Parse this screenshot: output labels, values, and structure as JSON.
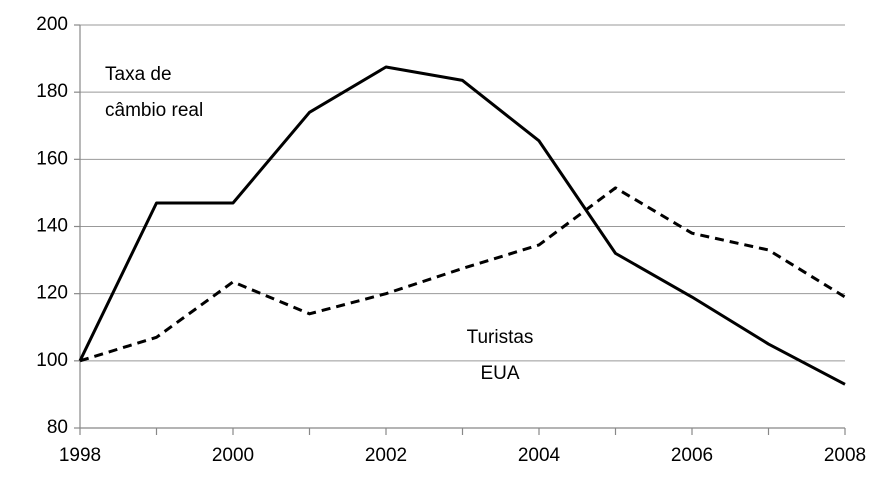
{
  "chart_data": {
    "type": "line",
    "x": [
      1998,
      1999,
      2000,
      2001,
      2002,
      2003,
      2004,
      2005,
      2006,
      2007,
      2008
    ],
    "series": [
      {
        "color": "#000000",
        "dash": false,
        "values": [
          100,
          147,
          147,
          174,
          187.5,
          183.5,
          165.5,
          132,
          119,
          105,
          93
        ]
      },
      {
        "color": "#000000",
        "dash": true,
        "values": [
          100,
          107,
          123.5,
          114,
          120,
          127.5,
          134.5,
          151.5,
          138,
          133,
          119
        ]
      }
    ],
    "annotations": [
      {
        "lines": [
          "Taxa de",
          "câmbio real"
        ]
      },
      {
        "lines": [
          "Turistas",
          "EUA"
        ]
      }
    ],
    "xlim": [
      1998,
      2008
    ],
    "xticks": [
      1998,
      2000,
      2002,
      2004,
      2006,
      2008
    ],
    "ylim": [
      80,
      200
    ],
    "yticks": [
      80,
      100,
      120,
      140,
      160,
      180,
      200
    ],
    "grid": true
  }
}
